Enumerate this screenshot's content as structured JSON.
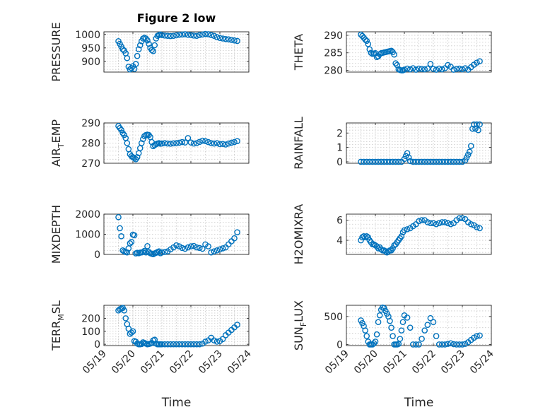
{
  "chart_data": [
    {
      "type": "scatter",
      "title": "Figure 2 low",
      "ylabel": "PRESSURE",
      "sub": "",
      "after": "",
      "xlim": [
        0,
        5
      ],
      "ylim": [
        860,
        1010
      ],
      "yticks": [
        900,
        950,
        1000
      ],
      "xticks": [
        "05/19",
        "05/20",
        "05/21",
        "05/22",
        "05/23",
        "05/24"
      ],
      "show_xticks": false,
      "xlabel": "",
      "x": [
        0.5,
        0.55,
        0.6,
        0.65,
        0.7,
        0.75,
        0.8,
        0.85,
        0.9,
        0.95,
        1.0,
        1.05,
        1.1,
        1.15,
        1.2,
        1.25,
        1.3,
        1.35,
        1.4,
        1.45,
        1.5,
        1.55,
        1.6,
        1.65,
        1.7,
        1.75,
        1.8,
        1.85,
        1.9,
        1.95,
        2.0,
        2.1,
        2.2,
        2.3,
        2.4,
        2.5,
        2.6,
        2.7,
        2.8,
        2.9,
        3.0,
        3.1,
        3.2,
        3.3,
        3.4,
        3.5,
        3.6,
        3.7,
        3.8,
        3.9,
        4.0,
        4.1,
        4.2,
        4.3,
        4.4,
        4.5,
        4.6
      ],
      "y": [
        975,
        965,
        955,
        945,
        940,
        930,
        912,
        880,
        870,
        875,
        882,
        872,
        890,
        920,
        945,
        960,
        975,
        985,
        988,
        985,
        978,
        965,
        950,
        942,
        938,
        960,
        985,
        995,
        998,
        1000,
        998,
        996,
        995,
        994,
        995,
        997,
        999,
        1000,
        1001,
        999,
        998,
        996,
        995,
        998,
        1000,
        1002,
        1001,
        998,
        995,
        990,
        987,
        985,
        983,
        982,
        980,
        978,
        976
      ]
    },
    {
      "type": "scatter",
      "title": "",
      "ylabel": "THETA",
      "sub": "",
      "after": "",
      "xlim": [
        0,
        5
      ],
      "ylim": [
        279.5,
        291
      ],
      "yticks": [
        280,
        285,
        290
      ],
      "xticks": [
        "05/19",
        "05/20",
        "05/21",
        "05/22",
        "05/23",
        "05/24"
      ],
      "show_xticks": false,
      "xlabel": "",
      "x": [
        0.5,
        0.55,
        0.6,
        0.65,
        0.7,
        0.75,
        0.8,
        0.85,
        0.9,
        0.95,
        1.0,
        1.05,
        1.1,
        1.15,
        1.2,
        1.25,
        1.3,
        1.35,
        1.4,
        1.45,
        1.5,
        1.55,
        1.6,
        1.65,
        1.7,
        1.75,
        1.8,
        1.85,
        1.9,
        1.95,
        2.0,
        2.1,
        2.2,
        2.3,
        2.4,
        2.5,
        2.6,
        2.7,
        2.8,
        2.9,
        3.0,
        3.1,
        3.2,
        3.3,
        3.4,
        3.5,
        3.6,
        3.7,
        3.8,
        3.9,
        4.0,
        4.1,
        4.2,
        4.3,
        4.4,
        4.5,
        4.6
      ],
      "y": [
        290.2,
        289.8,
        289.3,
        288.8,
        288.4,
        287.5,
        286,
        285,
        284.7,
        284.8,
        284.9,
        283.8,
        284,
        284.6,
        284.9,
        285,
        285.1,
        285.2,
        285.3,
        285.4,
        285.5,
        285.6,
        285.2,
        284.5,
        282,
        281.5,
        280.3,
        280.1,
        280,
        280,
        280.2,
        280.5,
        280.3,
        280.6,
        280.2,
        280.5,
        280.4,
        280.3,
        280.5,
        281.8,
        280.4,
        280.2,
        280.5,
        280.3,
        280.6,
        281.5,
        281,
        280.2,
        280.4,
        280.5,
        280.3,
        280.6,
        280.2,
        280.9,
        281.6,
        282.2,
        282.6
      ]
    },
    {
      "type": "scatter",
      "title": "",
      "ylabel": "AIR",
      "sub": "T",
      "after": "EMP",
      "xlim": [
        0,
        5
      ],
      "ylim": [
        270,
        290
      ],
      "yticks": [
        270,
        280,
        290
      ],
      "xticks": [
        "05/19",
        "05/20",
        "05/21",
        "05/22",
        "05/23",
        "05/24"
      ],
      "show_xticks": false,
      "xlabel": "",
      "x": [
        0.5,
        0.55,
        0.6,
        0.65,
        0.7,
        0.75,
        0.8,
        0.85,
        0.9,
        0.95,
        1.0,
        1.05,
        1.1,
        1.15,
        1.2,
        1.25,
        1.3,
        1.35,
        1.4,
        1.45,
        1.5,
        1.55,
        1.6,
        1.65,
        1.7,
        1.75,
        1.8,
        1.85,
        1.9,
        1.95,
        2.0,
        2.1,
        2.2,
        2.3,
        2.4,
        2.5,
        2.6,
        2.7,
        2.8,
        2.9,
        3.0,
        3.1,
        3.2,
        3.3,
        3.4,
        3.5,
        3.6,
        3.7,
        3.8,
        3.9,
        4.0,
        4.1,
        4.2,
        4.3,
        4.4,
        4.5,
        4.6
      ],
      "y": [
        288.5,
        287.5,
        286.5,
        285,
        284,
        282.5,
        280,
        277,
        274.5,
        273.5,
        273,
        272.5,
        272,
        273,
        275,
        277.5,
        280,
        282,
        283.5,
        284,
        284.2,
        284,
        283,
        280.5,
        278.5,
        279,
        279.5,
        279.8,
        280,
        279.7,
        279.8,
        280,
        279.8,
        279.7,
        279.9,
        280,
        280.2,
        280.5,
        280.3,
        282.5,
        280.3,
        279.8,
        280,
        280.6,
        281.2,
        281,
        280.5,
        280,
        279.8,
        280,
        279.5,
        279.6,
        279.3,
        279.8,
        280.2,
        280.5,
        281
      ]
    },
    {
      "type": "scatter",
      "title": "",
      "ylabel": "RAINFALL",
      "sub": "",
      "after": "",
      "xlim": [
        0,
        5
      ],
      "ylim": [
        -0.1,
        2.7
      ],
      "yticks": [
        0,
        1,
        2
      ],
      "xticks": [
        "05/19",
        "05/20",
        "05/21",
        "05/22",
        "05/23",
        "05/24"
      ],
      "show_xticks": false,
      "xlabel": "",
      "x": [
        0.5,
        0.6,
        0.7,
        0.8,
        0.9,
        1.0,
        1.1,
        1.2,
        1.3,
        1.4,
        1.5,
        1.6,
        1.7,
        1.8,
        1.9,
        2.0,
        2.05,
        2.1,
        2.15,
        2.2,
        2.3,
        2.4,
        2.5,
        2.6,
        2.7,
        2.8,
        2.9,
        3.0,
        3.1,
        3.2,
        3.3,
        3.4,
        3.5,
        3.6,
        3.7,
        3.8,
        3.9,
        4.0,
        4.1,
        4.15,
        4.2,
        4.25,
        4.3,
        4.35,
        4.4,
        4.45,
        4.5,
        4.55,
        4.6
      ],
      "y": [
        0,
        0,
        0,
        0,
        0,
        0,
        0,
        0,
        0,
        0,
        0,
        0,
        0,
        0,
        0,
        0.2,
        0.4,
        0.6,
        0.3,
        0.05,
        0,
        0,
        0,
        0,
        0,
        0,
        0,
        0,
        0,
        0,
        0,
        0,
        0,
        0,
        0,
        0,
        0,
        0,
        0.1,
        0.3,
        0.5,
        0.7,
        1.1,
        2.3,
        2.6,
        2.3,
        2.6,
        2.2,
        2.6
      ]
    },
    {
      "type": "scatter",
      "title": "",
      "ylabel": "MIXDEPTH",
      "sub": "",
      "after": "",
      "xlim": [
        0,
        5
      ],
      "ylim": [
        0,
        2000
      ],
      "yticks": [
        0,
        1000,
        2000
      ],
      "xticks": [
        "05/19",
        "05/20",
        "05/21",
        "05/22",
        "05/23",
        "05/24"
      ],
      "show_xticks": false,
      "xlabel": "",
      "x": [
        0.5,
        0.55,
        0.6,
        0.65,
        0.7,
        0.75,
        0.8,
        0.85,
        0.9,
        0.95,
        1.0,
        1.05,
        1.1,
        1.15,
        1.2,
        1.25,
        1.3,
        1.35,
        1.4,
        1.45,
        1.5,
        1.55,
        1.6,
        1.65,
        1.7,
        1.75,
        1.8,
        1.85,
        1.9,
        1.95,
        2.0,
        2.1,
        2.2,
        2.3,
        2.4,
        2.5,
        2.6,
        2.7,
        2.8,
        2.9,
        3.0,
        3.1,
        3.2,
        3.3,
        3.4,
        3.5,
        3.6,
        3.7,
        3.8,
        3.9,
        4.0,
        4.1,
        4.2,
        4.3,
        4.4,
        4.5,
        4.6
      ],
      "y": [
        1850,
        1300,
        900,
        200,
        150,
        120,
        100,
        300,
        550,
        620,
        980,
        950,
        50,
        80,
        60,
        90,
        100,
        120,
        180,
        100,
        410,
        120,
        60,
        30,
        10,
        50,
        80,
        120,
        150,
        60,
        100,
        120,
        150,
        250,
        350,
        450,
        400,
        320,
        280,
        350,
        400,
        420,
        350,
        320,
        280,
        500,
        400,
        100,
        150,
        200,
        250,
        300,
        350,
        500,
        650,
        800,
        1100
      ]
    },
    {
      "type": "scatter",
      "title": "",
      "ylabel": "H2OMIXRA",
      "sub": "",
      "after": "",
      "xlim": [
        0,
        5
      ],
      "ylim": [
        2.6,
        6.6
      ],
      "yticks": [
        4,
        6
      ],
      "xticks": [
        "05/19",
        "05/20",
        "05/21",
        "05/22",
        "05/23",
        "05/24"
      ],
      "show_xticks": false,
      "xlabel": "",
      "x": [
        0.5,
        0.55,
        0.6,
        0.65,
        0.7,
        0.75,
        0.8,
        0.85,
        0.9,
        0.95,
        1.0,
        1.05,
        1.1,
        1.15,
        1.2,
        1.25,
        1.3,
        1.35,
        1.4,
        1.45,
        1.5,
        1.55,
        1.6,
        1.65,
        1.7,
        1.75,
        1.8,
        1.85,
        1.9,
        1.95,
        2.0,
        2.1,
        2.2,
        2.3,
        2.4,
        2.5,
        2.6,
        2.7,
        2.8,
        2.9,
        3.0,
        3.1,
        3.2,
        3.3,
        3.4,
        3.5,
        3.6,
        3.7,
        3.8,
        3.9,
        4.0,
        4.1,
        4.2,
        4.3,
        4.4,
        4.5,
        4.6
      ],
      "y": [
        4.0,
        4.3,
        4.4,
        4.3,
        4.4,
        4.3,
        4.0,
        3.8,
        3.6,
        3.6,
        3.5,
        3.4,
        3.2,
        3.3,
        3.1,
        3.0,
        3.0,
        2.9,
        2.8,
        2.9,
        3.0,
        3.0,
        3.2,
        3.5,
        3.6,
        3.8,
        4.0,
        4.2,
        4.4,
        4.8,
        5.0,
        5.1,
        5.2,
        5.4,
        5.6,
        5.9,
        6.0,
        6.0,
        5.8,
        5.7,
        5.7,
        5.6,
        5.7,
        5.8,
        5.8,
        5.7,
        5.6,
        5.7,
        6.0,
        6.2,
        6.2,
        6.1,
        5.8,
        5.6,
        5.5,
        5.3,
        5.2
      ]
    },
    {
      "type": "scatter",
      "title": "",
      "ylabel": "TERR",
      "sub": "M",
      "after": "SL",
      "xlim": [
        0,
        5
      ],
      "ylim": [
        -10,
        300
      ],
      "yticks": [
        0,
        100,
        200
      ],
      "xticks": [
        "05/19",
        "05/20",
        "05/21",
        "05/22",
        "05/23",
        "05/24"
      ],
      "show_xticks": true,
      "xlabel": "Time",
      "x": [
        0.5,
        0.55,
        0.6,
        0.65,
        0.7,
        0.75,
        0.8,
        0.85,
        0.9,
        0.95,
        1.0,
        1.05,
        1.1,
        1.15,
        1.2,
        1.25,
        1.3,
        1.35,
        1.4,
        1.45,
        1.5,
        1.55,
        1.6,
        1.65,
        1.7,
        1.75,
        1.8,
        1.85,
        1.9,
        1.95,
        2.0,
        2.1,
        2.2,
        2.3,
        2.4,
        2.5,
        2.6,
        2.7,
        2.8,
        2.9,
        3.0,
        3.1,
        3.2,
        3.3,
        3.4,
        3.5,
        3.6,
        3.7,
        3.8,
        3.9,
        4.0,
        4.1,
        4.2,
        4.3,
        4.4,
        4.5,
        4.6
      ],
      "y": [
        260,
        270,
        275,
        280,
        260,
        200,
        155,
        120,
        80,
        90,
        100,
        25,
        20,
        5,
        0,
        0,
        2,
        15,
        10,
        5,
        0,
        2,
        5,
        10,
        30,
        35,
        5,
        0,
        0,
        0,
        0,
        0,
        0,
        0,
        0,
        0,
        0,
        0,
        0,
        0,
        0,
        0,
        0,
        0,
        5,
        20,
        30,
        50,
        30,
        20,
        25,
        40,
        70,
        90,
        110,
        130,
        150
      ]
    },
    {
      "type": "scatter",
      "title": "",
      "ylabel": "SUN",
      "sub": "F",
      "after": "LUX",
      "xlim": [
        0,
        5
      ],
      "ylim": [
        -20,
        700
      ],
      "yticks": [
        0,
        500
      ],
      "xticks": [
        "05/19",
        "05/20",
        "05/21",
        "05/22",
        "05/23",
        "05/24"
      ],
      "show_xticks": true,
      "xlabel": "Time",
      "x": [
        0.5,
        0.55,
        0.6,
        0.65,
        0.7,
        0.75,
        0.8,
        0.85,
        0.9,
        0.95,
        1.0,
        1.05,
        1.1,
        1.15,
        1.2,
        1.25,
        1.3,
        1.35,
        1.4,
        1.45,
        1.5,
        1.55,
        1.6,
        1.65,
        1.7,
        1.75,
        1.8,
        1.85,
        1.9,
        1.95,
        2.0,
        2.1,
        2.2,
        2.3,
        2.4,
        2.5,
        2.6,
        2.7,
        2.8,
        2.9,
        3.0,
        3.1,
        3.2,
        3.3,
        3.4,
        3.5,
        3.6,
        3.7,
        3.8,
        3.9,
        4.0,
        4.1,
        4.2,
        4.3,
        4.4,
        4.5,
        4.6
      ],
      "y": [
        430,
        380,
        330,
        250,
        150,
        50,
        0,
        0,
        0,
        20,
        50,
        180,
        400,
        520,
        620,
        660,
        650,
        600,
        550,
        500,
        420,
        300,
        150,
        0,
        0,
        0,
        10,
        100,
        250,
        400,
        520,
        480,
        300,
        0,
        0,
        0,
        100,
        250,
        350,
        470,
        400,
        150,
        0,
        0,
        0,
        10,
        20,
        5,
        0,
        0,
        0,
        10,
        40,
        80,
        120,
        150,
        160
      ]
    }
  ]
}
